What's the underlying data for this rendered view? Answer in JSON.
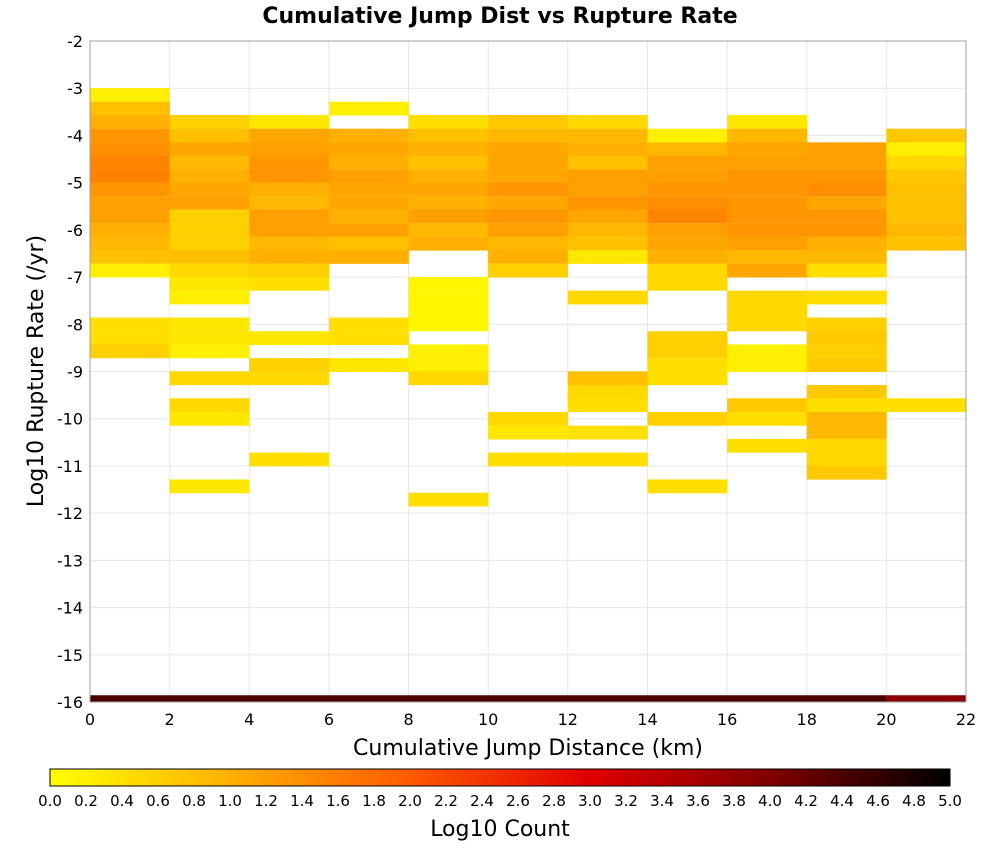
{
  "chart_data": {
    "type": "heatmap",
    "title": "Cumulative Jump Dist vs Rupture Rate",
    "xlabel": "Cumulative Jump Distance (km)",
    "ylabel": "Log10 Rupture Rate (/yr)",
    "colorbar_label": "Log10 Count",
    "xlim": [
      0,
      22
    ],
    "ylim": [
      -16,
      -2
    ],
    "x_ticks": [
      "0",
      "2",
      "4",
      "6",
      "8",
      "10",
      "12",
      "14",
      "16",
      "18",
      "20",
      "22"
    ],
    "y_ticks": [
      "-2",
      "-3",
      "-4",
      "-5",
      "-6",
      "-7",
      "-8",
      "-9",
      "-10",
      "-11",
      "-12",
      "-13",
      "-14",
      "-15",
      "-16"
    ],
    "color_range": [
      0.0,
      5.0
    ],
    "color_ticks": [
      "0.0",
      "0.2",
      "0.4",
      "0.6",
      "0.8",
      "1.0",
      "1.2",
      "1.4",
      "1.6",
      "1.8",
      "2.0",
      "2.2",
      "2.4",
      "2.6",
      "2.8",
      "3.0",
      "3.2",
      "3.4",
      "3.6",
      "3.8",
      "4.0",
      "4.2",
      "4.4",
      "4.6",
      "4.8",
      "5.0"
    ],
    "colormap": [
      "#ffff00",
      "#ffb000",
      "#ff5a00",
      "#e00000",
      "#800000",
      "#000000"
    ],
    "grid": true,
    "bin_x_width": 2,
    "bin_y_height": 0.286,
    "cells": [
      {
        "x": 0,
        "y": -3.14,
        "v": 0.2
      },
      {
        "x": 0,
        "y": -3.43,
        "v": 0.8
      },
      {
        "x": 0,
        "y": -3.71,
        "v": 1.0
      },
      {
        "x": 0,
        "y": -4.0,
        "v": 1.3
      },
      {
        "x": 0,
        "y": -4.29,
        "v": 1.4
      },
      {
        "x": 0,
        "y": -4.57,
        "v": 1.5
      },
      {
        "x": 0,
        "y": -4.86,
        "v": 1.55
      },
      {
        "x": 0,
        "y": -5.14,
        "v": 1.3
      },
      {
        "x": 0,
        "y": -5.43,
        "v": 1.2
      },
      {
        "x": 0,
        "y": -5.71,
        "v": 1.2
      },
      {
        "x": 0,
        "y": -6.0,
        "v": 1.0
      },
      {
        "x": 0,
        "y": -6.29,
        "v": 0.9
      },
      {
        "x": 0,
        "y": -6.57,
        "v": 0.8
      },
      {
        "x": 0,
        "y": -6.86,
        "v": 0.2
      },
      {
        "x": 0,
        "y": -8.0,
        "v": 0.4
      },
      {
        "x": 0,
        "y": -8.29,
        "v": 0.4
      },
      {
        "x": 0,
        "y": -8.57,
        "v": 0.6
      },
      {
        "x": 2,
        "y": -3.71,
        "v": 0.6
      },
      {
        "x": 2,
        "y": -4.0,
        "v": 0.8
      },
      {
        "x": 2,
        "y": -4.29,
        "v": 1.1
      },
      {
        "x": 2,
        "y": -4.57,
        "v": 0.9
      },
      {
        "x": 2,
        "y": -4.86,
        "v": 1.0
      },
      {
        "x": 2,
        "y": -5.14,
        "v": 1.1
      },
      {
        "x": 2,
        "y": -5.43,
        "v": 1.2
      },
      {
        "x": 2,
        "y": -5.71,
        "v": 0.6
      },
      {
        "x": 2,
        "y": -6.0,
        "v": 0.6
      },
      {
        "x": 2,
        "y": -6.29,
        "v": 0.6
      },
      {
        "x": 2,
        "y": -6.57,
        "v": 0.8
      },
      {
        "x": 2,
        "y": -6.86,
        "v": 0.5
      },
      {
        "x": 2,
        "y": -7.14,
        "v": 0.3
      },
      {
        "x": 2,
        "y": -7.43,
        "v": 0.2
      },
      {
        "x": 2,
        "y": -8.0,
        "v": 0.3
      },
      {
        "x": 2,
        "y": -8.29,
        "v": 0.3
      },
      {
        "x": 2,
        "y": -8.57,
        "v": 0.2
      },
      {
        "x": 2,
        "y": -9.14,
        "v": 0.5
      },
      {
        "x": 2,
        "y": -9.71,
        "v": 0.5
      },
      {
        "x": 2,
        "y": -10.0,
        "v": 0.3
      },
      {
        "x": 2,
        "y": -11.43,
        "v": 0.3
      },
      {
        "x": 4,
        "y": -3.71,
        "v": 0.3
      },
      {
        "x": 4,
        "y": -4.0,
        "v": 1.1
      },
      {
        "x": 4,
        "y": -4.29,
        "v": 1.2
      },
      {
        "x": 4,
        "y": -4.57,
        "v": 1.3
      },
      {
        "x": 4,
        "y": -4.86,
        "v": 1.3
      },
      {
        "x": 4,
        "y": -5.14,
        "v": 1.0
      },
      {
        "x": 4,
        "y": -5.43,
        "v": 0.9
      },
      {
        "x": 4,
        "y": -5.71,
        "v": 1.2
      },
      {
        "x": 4,
        "y": -6.0,
        "v": 1.2
      },
      {
        "x": 4,
        "y": -6.29,
        "v": 0.9
      },
      {
        "x": 4,
        "y": -6.57,
        "v": 1.0
      },
      {
        "x": 4,
        "y": -6.86,
        "v": 0.6
      },
      {
        "x": 4,
        "y": -7.14,
        "v": 0.4
      },
      {
        "x": 4,
        "y": -8.29,
        "v": 0.3
      },
      {
        "x": 4,
        "y": -8.86,
        "v": 0.6
      },
      {
        "x": 4,
        "y": -9.14,
        "v": 0.5
      },
      {
        "x": 4,
        "y": -10.86,
        "v": 0.4
      },
      {
        "x": 6,
        "y": -3.43,
        "v": 0.2
      },
      {
        "x": 6,
        "y": -4.0,
        "v": 1.0
      },
      {
        "x": 6,
        "y": -4.29,
        "v": 1.1
      },
      {
        "x": 6,
        "y": -4.57,
        "v": 1.0
      },
      {
        "x": 6,
        "y": -4.86,
        "v": 1.2
      },
      {
        "x": 6,
        "y": -5.14,
        "v": 1.1
      },
      {
        "x": 6,
        "y": -5.43,
        "v": 1.1
      },
      {
        "x": 6,
        "y": -5.71,
        "v": 1.0
      },
      {
        "x": 6,
        "y": -6.0,
        "v": 1.2
      },
      {
        "x": 6,
        "y": -6.29,
        "v": 0.8
      },
      {
        "x": 6,
        "y": -6.57,
        "v": 1.0
      },
      {
        "x": 6,
        "y": -8.0,
        "v": 0.4
      },
      {
        "x": 6,
        "y": -8.29,
        "v": 0.4
      },
      {
        "x": 6,
        "y": -8.86,
        "v": 0.3
      },
      {
        "x": 8,
        "y": -3.71,
        "v": 0.4
      },
      {
        "x": 8,
        "y": -4.0,
        "v": 0.8
      },
      {
        "x": 8,
        "y": -4.29,
        "v": 1.0
      },
      {
        "x": 8,
        "y": -4.57,
        "v": 0.8
      },
      {
        "x": 8,
        "y": -4.86,
        "v": 1.0
      },
      {
        "x": 8,
        "y": -5.14,
        "v": 1.1
      },
      {
        "x": 8,
        "y": -5.43,
        "v": 1.0
      },
      {
        "x": 8,
        "y": -5.71,
        "v": 1.2
      },
      {
        "x": 8,
        "y": -6.0,
        "v": 0.9
      },
      {
        "x": 8,
        "y": -6.29,
        "v": 1.0
      },
      {
        "x": 8,
        "y": -7.14,
        "v": 0.1
      },
      {
        "x": 8,
        "y": -7.43,
        "v": 0.1
      },
      {
        "x": 8,
        "y": -7.71,
        "v": 0.1
      },
      {
        "x": 8,
        "y": -8.0,
        "v": 0.1
      },
      {
        "x": 8,
        "y": -8.57,
        "v": 0.2
      },
      {
        "x": 8,
        "y": -8.86,
        "v": 0.2
      },
      {
        "x": 8,
        "y": -9.14,
        "v": 0.5
      },
      {
        "x": 8,
        "y": -11.71,
        "v": 0.4
      },
      {
        "x": 10,
        "y": -3.71,
        "v": 0.7
      },
      {
        "x": 10,
        "y": -4.0,
        "v": 0.9
      },
      {
        "x": 10,
        "y": -4.29,
        "v": 1.1
      },
      {
        "x": 10,
        "y": -4.57,
        "v": 1.1
      },
      {
        "x": 10,
        "y": -4.86,
        "v": 1.1
      },
      {
        "x": 10,
        "y": -5.14,
        "v": 1.3
      },
      {
        "x": 10,
        "y": -5.43,
        "v": 1.1
      },
      {
        "x": 10,
        "y": -5.71,
        "v": 1.3
      },
      {
        "x": 10,
        "y": -6.0,
        "v": 1.2
      },
      {
        "x": 10,
        "y": -6.29,
        "v": 0.9
      },
      {
        "x": 10,
        "y": -6.57,
        "v": 1.0
      },
      {
        "x": 10,
        "y": -6.86,
        "v": 0.6
      },
      {
        "x": 10,
        "y": -10.0,
        "v": 0.5
      },
      {
        "x": 10,
        "y": -10.29,
        "v": 0.3
      },
      {
        "x": 10,
        "y": -10.86,
        "v": 0.4
      },
      {
        "x": 12,
        "y": -3.71,
        "v": 0.5
      },
      {
        "x": 12,
        "y": -4.0,
        "v": 0.9
      },
      {
        "x": 12,
        "y": -4.29,
        "v": 1.0
      },
      {
        "x": 12,
        "y": -4.57,
        "v": 0.8
      },
      {
        "x": 12,
        "y": -4.86,
        "v": 1.2
      },
      {
        "x": 12,
        "y": -5.14,
        "v": 1.2
      },
      {
        "x": 12,
        "y": -5.43,
        "v": 1.3
      },
      {
        "x": 12,
        "y": -5.71,
        "v": 1.1
      },
      {
        "x": 12,
        "y": -6.0,
        "v": 0.9
      },
      {
        "x": 12,
        "y": -6.29,
        "v": 0.8
      },
      {
        "x": 12,
        "y": -6.57,
        "v": 0.3
      },
      {
        "x": 12,
        "y": -7.43,
        "v": 0.5
      },
      {
        "x": 12,
        "y": -9.14,
        "v": 0.8
      },
      {
        "x": 12,
        "y": -9.43,
        "v": 0.5
      },
      {
        "x": 12,
        "y": -9.71,
        "v": 0.4
      },
      {
        "x": 12,
        "y": -10.29,
        "v": 0.4
      },
      {
        "x": 12,
        "y": -10.86,
        "v": 0.4
      },
      {
        "x": 14,
        "y": -4.0,
        "v": 0.2
      },
      {
        "x": 14,
        "y": -4.29,
        "v": 0.9
      },
      {
        "x": 14,
        "y": -4.57,
        "v": 1.2
      },
      {
        "x": 14,
        "y": -4.86,
        "v": 1.2
      },
      {
        "x": 14,
        "y": -5.14,
        "v": 1.3
      },
      {
        "x": 14,
        "y": -5.43,
        "v": 1.4
      },
      {
        "x": 14,
        "y": -5.71,
        "v": 1.5
      },
      {
        "x": 14,
        "y": -6.0,
        "v": 1.2
      },
      {
        "x": 14,
        "y": -6.29,
        "v": 1.1
      },
      {
        "x": 14,
        "y": -6.57,
        "v": 1.0
      },
      {
        "x": 14,
        "y": -6.86,
        "v": 0.5
      },
      {
        "x": 14,
        "y": -7.14,
        "v": 0.5
      },
      {
        "x": 14,
        "y": -8.29,
        "v": 0.6
      },
      {
        "x": 14,
        "y": -8.57,
        "v": 0.6
      },
      {
        "x": 14,
        "y": -8.86,
        "v": 0.4
      },
      {
        "x": 14,
        "y": -9.14,
        "v": 0.4
      },
      {
        "x": 14,
        "y": -10.0,
        "v": 0.6
      },
      {
        "x": 14,
        "y": -11.43,
        "v": 0.4
      },
      {
        "x": 16,
        "y": -3.71,
        "v": 0.3
      },
      {
        "x": 16,
        "y": -4.0,
        "v": 0.9
      },
      {
        "x": 16,
        "y": -4.29,
        "v": 1.1
      },
      {
        "x": 16,
        "y": -4.57,
        "v": 1.2
      },
      {
        "x": 16,
        "y": -4.86,
        "v": 1.3
      },
      {
        "x": 16,
        "y": -5.14,
        "v": 1.3
      },
      {
        "x": 16,
        "y": -5.43,
        "v": 1.3
      },
      {
        "x": 16,
        "y": -5.71,
        "v": 1.3
      },
      {
        "x": 16,
        "y": -6.0,
        "v": 1.3
      },
      {
        "x": 16,
        "y": -6.29,
        "v": 1.2
      },
      {
        "x": 16,
        "y": -6.57,
        "v": 0.9
      },
      {
        "x": 16,
        "y": -6.86,
        "v": 1.1
      },
      {
        "x": 16,
        "y": -7.43,
        "v": 0.5
      },
      {
        "x": 16,
        "y": -7.71,
        "v": 0.5
      },
      {
        "x": 16,
        "y": -8.0,
        "v": 0.5
      },
      {
        "x": 16,
        "y": -8.57,
        "v": 0.2
      },
      {
        "x": 16,
        "y": -8.86,
        "v": 0.2
      },
      {
        "x": 16,
        "y": -9.71,
        "v": 0.7
      },
      {
        "x": 16,
        "y": -10.0,
        "v": 0.4
      },
      {
        "x": 16,
        "y": -10.57,
        "v": 0.4
      },
      {
        "x": 18,
        "y": -4.29,
        "v": 1.2
      },
      {
        "x": 18,
        "y": -4.57,
        "v": 1.2
      },
      {
        "x": 18,
        "y": -4.86,
        "v": 1.3
      },
      {
        "x": 18,
        "y": -5.14,
        "v": 1.4
      },
      {
        "x": 18,
        "y": -5.43,
        "v": 1.1
      },
      {
        "x": 18,
        "y": -5.71,
        "v": 1.3
      },
      {
        "x": 18,
        "y": -6.0,
        "v": 1.3
      },
      {
        "x": 18,
        "y": -6.29,
        "v": 1.0
      },
      {
        "x": 18,
        "y": -6.57,
        "v": 0.9
      },
      {
        "x": 18,
        "y": -6.86,
        "v": 0.4
      },
      {
        "x": 18,
        "y": -7.43,
        "v": 0.4
      },
      {
        "x": 18,
        "y": -8.0,
        "v": 0.6
      },
      {
        "x": 18,
        "y": -8.29,
        "v": 0.7
      },
      {
        "x": 18,
        "y": -8.57,
        "v": 0.6
      },
      {
        "x": 18,
        "y": -8.86,
        "v": 0.7
      },
      {
        "x": 18,
        "y": -9.43,
        "v": 0.7
      },
      {
        "x": 18,
        "y": -9.71,
        "v": 0.4
      },
      {
        "x": 18,
        "y": -10.0,
        "v": 0.9
      },
      {
        "x": 18,
        "y": -10.29,
        "v": 0.9
      },
      {
        "x": 18,
        "y": -10.57,
        "v": 0.5
      },
      {
        "x": 18,
        "y": -10.86,
        "v": 0.5
      },
      {
        "x": 18,
        "y": -11.14,
        "v": 0.7
      },
      {
        "x": 20,
        "y": -4.0,
        "v": 0.7
      },
      {
        "x": 20,
        "y": -4.29,
        "v": 0.2
      },
      {
        "x": 20,
        "y": -4.57,
        "v": 0.5
      },
      {
        "x": 20,
        "y": -4.86,
        "v": 0.7
      },
      {
        "x": 20,
        "y": -5.14,
        "v": 0.8
      },
      {
        "x": 20,
        "y": -5.43,
        "v": 0.8
      },
      {
        "x": 20,
        "y": -5.71,
        "v": 0.8
      },
      {
        "x": 20,
        "y": -6.0,
        "v": 0.9
      },
      {
        "x": 20,
        "y": -6.29,
        "v": 0.8
      },
      {
        "x": 20,
        "y": -9.71,
        "v": 0.4
      }
    ],
    "bottom_band": {
      "y": -16,
      "segments": [
        {
          "x0": 0,
          "x1": 20,
          "v": 4.4
        },
        {
          "x0": 20,
          "x1": 22,
          "v": 3.9
        }
      ]
    }
  }
}
